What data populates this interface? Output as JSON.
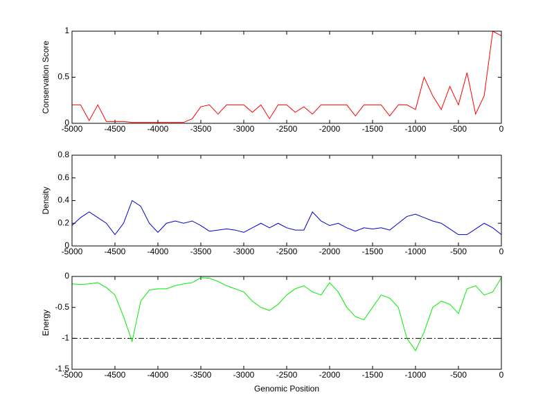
{
  "chart_data": [
    {
      "type": "line",
      "ylabel": "Conservation Score",
      "x": [
        -5000,
        -4900,
        -4800,
        -4700,
        -4600,
        -4500,
        -4400,
        -4300,
        -4200,
        -4100,
        -4000,
        -3900,
        -3800,
        -3700,
        -3600,
        -3500,
        -3400,
        -3300,
        -3200,
        -3100,
        -3000,
        -2900,
        -2800,
        -2700,
        -2600,
        -2500,
        -2400,
        -2300,
        -2200,
        -2100,
        -2000,
        -1900,
        -1800,
        -1700,
        -1600,
        -1500,
        -1400,
        -1300,
        -1200,
        -1100,
        -1000,
        -900,
        -800,
        -700,
        -600,
        -500,
        -400,
        -300,
        -200,
        -100,
        0
      ],
      "series": [
        {
          "color": "#ff0000",
          "values": [
            0.2,
            0.2,
            0.03,
            0.2,
            0.02,
            0.02,
            0.02,
            0.01,
            0.01,
            0.01,
            0.01,
            0.01,
            0.01,
            0.01,
            0.05,
            0.18,
            0.2,
            0.1,
            0.2,
            0.2,
            0.2,
            0.12,
            0.2,
            0.05,
            0.2,
            0.2,
            0.12,
            0.18,
            0.1,
            0.2,
            0.2,
            0.2,
            0.2,
            0.08,
            0.2,
            0.2,
            0.2,
            0.08,
            0.2,
            0.2,
            0.15,
            0.5,
            0.3,
            0.15,
            0.4,
            0.2,
            0.55,
            0.1,
            0.3,
            1,
            0.95
          ]
        }
      ],
      "xlim": [
        -5000,
        0
      ],
      "xticks": [
        -5000,
        -4500,
        -4000,
        -3500,
        -3000,
        -2500,
        -2000,
        -1500,
        -1000,
        -500,
        0
      ],
      "ylim": [
        0,
        1
      ],
      "yticks": [
        0,
        0.5,
        1
      ]
    },
    {
      "type": "line",
      "ylabel": "Density",
      "x": [
        -5000,
        -4900,
        -4800,
        -4700,
        -4600,
        -4500,
        -4400,
        -4300,
        -4200,
        -4100,
        -4000,
        -3900,
        -3800,
        -3700,
        -3600,
        -3500,
        -3400,
        -3300,
        -3200,
        -3100,
        -3000,
        -2900,
        -2800,
        -2700,
        -2600,
        -2500,
        -2400,
        -2300,
        -2200,
        -2100,
        -2000,
        -1900,
        -1800,
        -1700,
        -1600,
        -1500,
        -1400,
        -1300,
        -1200,
        -1100,
        -1000,
        -900,
        -800,
        -700,
        -600,
        -500,
        -400,
        -300,
        -200,
        -100,
        0
      ],
      "series": [
        {
          "color": "#0000cc",
          "values": [
            0.18,
            0.25,
            0.3,
            0.25,
            0.2,
            0.1,
            0.2,
            0.4,
            0.35,
            0.2,
            0.12,
            0.2,
            0.22,
            0.2,
            0.22,
            0.18,
            0.13,
            0.14,
            0.15,
            0.14,
            0.12,
            0.16,
            0.2,
            0.16,
            0.2,
            0.16,
            0.14,
            0.14,
            0.3,
            0.22,
            0.18,
            0.2,
            0.16,
            0.13,
            0.16,
            0.15,
            0.16,
            0.14,
            0.2,
            0.26,
            0.28,
            0.25,
            0.22,
            0.2,
            0.15,
            0.1,
            0.1,
            0.15,
            0.2,
            0.16,
            0.1
          ]
        }
      ],
      "xlim": [
        -5000,
        0
      ],
      "xticks": [
        -5000,
        -4500,
        -4000,
        -3500,
        -3000,
        -2500,
        -2000,
        -1500,
        -1000,
        -500,
        0
      ],
      "ylim": [
        0,
        0.8
      ],
      "yticks": [
        0,
        0.2,
        0.4,
        0.6,
        0.8
      ]
    },
    {
      "type": "line",
      "ylabel": "Energy",
      "xlabel": "Genomic Position",
      "x": [
        -5000,
        -4900,
        -4800,
        -4700,
        -4600,
        -4500,
        -4400,
        -4300,
        -4200,
        -4100,
        -4000,
        -3900,
        -3800,
        -3700,
        -3600,
        -3500,
        -3400,
        -3300,
        -3200,
        -3100,
        -3000,
        -2900,
        -2800,
        -2700,
        -2600,
        -2500,
        -2400,
        -2300,
        -2200,
        -2100,
        -2000,
        -1900,
        -1800,
        -1700,
        -1600,
        -1500,
        -1400,
        -1300,
        -1200,
        -1100,
        -1000,
        -900,
        -800,
        -700,
        -600,
        -500,
        -400,
        -300,
        -200,
        -100,
        0
      ],
      "series": [
        {
          "color": "#00ee00",
          "values": [
            -0.12,
            -0.13,
            -0.12,
            -0.1,
            -0.18,
            -0.3,
            -0.65,
            -1.05,
            -0.4,
            -0.22,
            -0.2,
            -0.2,
            -0.15,
            -0.12,
            -0.1,
            -0.02,
            -0.03,
            -0.08,
            -0.15,
            -0.2,
            -0.25,
            -0.4,
            -0.5,
            -0.55,
            -0.45,
            -0.3,
            -0.2,
            -0.15,
            -0.25,
            -0.3,
            -0.1,
            -0.25,
            -0.5,
            -0.65,
            -0.7,
            -0.5,
            -0.3,
            -0.35,
            -0.5,
            -1,
            -1.2,
            -0.9,
            -0.5,
            -0.4,
            -0.45,
            -0.6,
            -0.2,
            -0.15,
            -0.3,
            -0.25,
            -0.02
          ]
        }
      ],
      "reference_line": -1,
      "xlim": [
        -5000,
        0
      ],
      "xticks": [
        -5000,
        -4500,
        -4000,
        -3500,
        -3000,
        -2500,
        -2000,
        -1500,
        -1000,
        -500,
        0
      ],
      "ylim": [
        -1.5,
        0
      ],
      "yticks": [
        -1.5,
        -1,
        -0.5,
        0
      ]
    }
  ]
}
